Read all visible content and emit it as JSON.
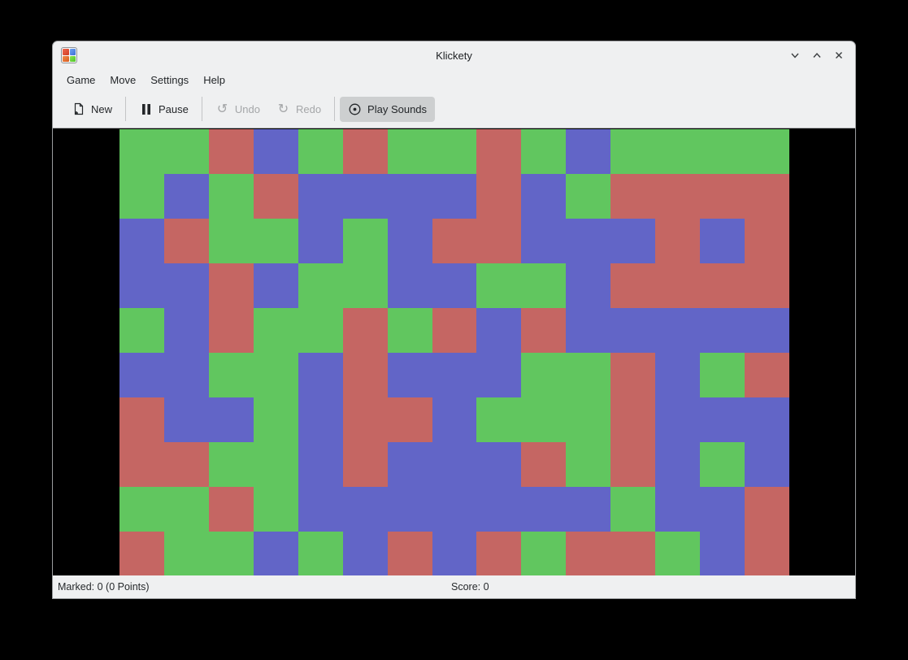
{
  "window": {
    "title": "Klickety",
    "controls": {
      "minimize": "chevron-down",
      "maximize": "chevron-up",
      "close": "x"
    }
  },
  "menu": {
    "items": [
      {
        "label": "Game"
      },
      {
        "label": "Move"
      },
      {
        "label": "Settings"
      },
      {
        "label": "Help"
      }
    ]
  },
  "toolbar": {
    "buttons": [
      {
        "label": "New",
        "icon": "document-new-icon",
        "enabled": true,
        "checked": false
      },
      {
        "label": "Pause",
        "icon": "pause-icon",
        "enabled": true,
        "checked": false
      },
      {
        "label": "Undo",
        "icon": "undo-icon",
        "enabled": false,
        "checked": false
      },
      {
        "label": "Redo",
        "icon": "redo-icon",
        "enabled": false,
        "checked": false
      },
      {
        "label": "Play Sounds",
        "icon": "speaker-icon",
        "enabled": true,
        "checked": true
      }
    ]
  },
  "board": {
    "rows": 10,
    "columns": 15,
    "colors": {
      "G": "#61c65f",
      "R": "#c56663",
      "B": "#6265c7"
    },
    "grid": [
      "GGRBGRGGRGBGGGG",
      "GBGRBBBBRBGRRRR",
      "BRGGBGBRRBBBRBR",
      "BBRBGGBBGGBRRRR",
      "GBRGGRGRBRBBBBB",
      "BBGGBRBBBGGRBGR",
      "RBBGBRRBGGGRBBB",
      "RRGGBRBBBRGRBGB",
      "GGRGBBBBBBBGBBR",
      "RGGBGBRBRGRRGBR"
    ]
  },
  "statusbar": {
    "marked": "Marked: 0 (0 Points)",
    "score": "Score: 0"
  }
}
